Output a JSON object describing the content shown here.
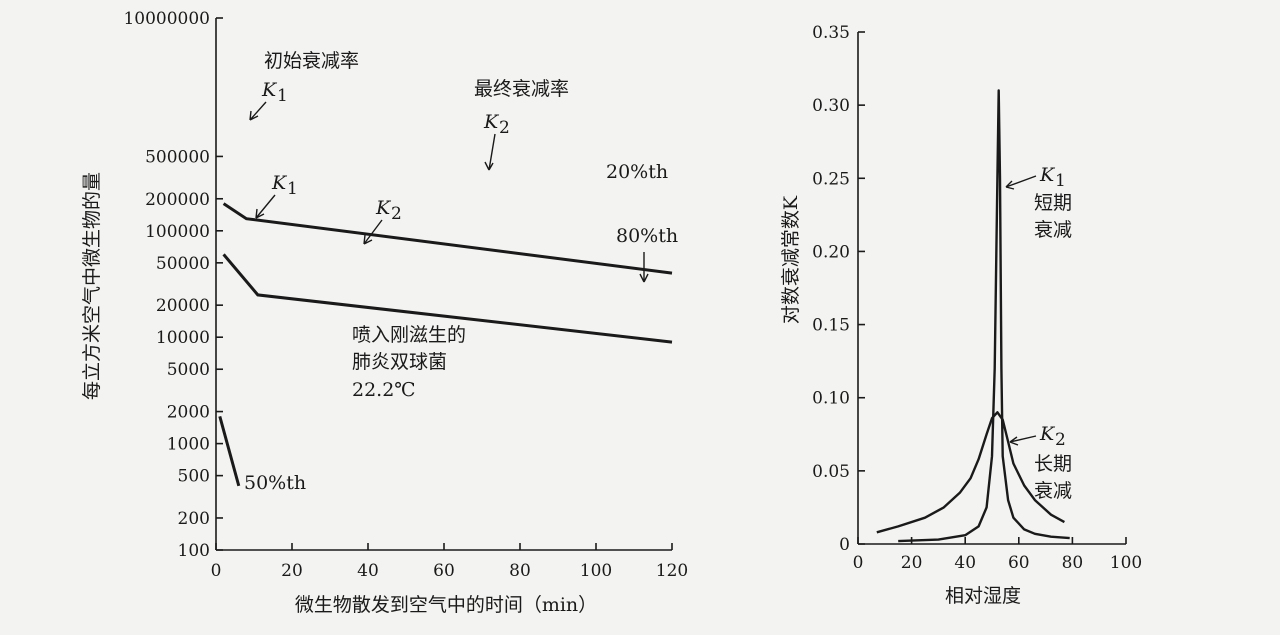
{
  "chart_data": [
    {
      "type": "line",
      "xlabel": "微生物散发到空气中的时间（min）",
      "ylabel": "每立方米空气中微生物的量",
      "yscale": "log",
      "xlim": [
        0,
        120
      ],
      "ylim": [
        100,
        10000000
      ],
      "x_ticks": [
        "0",
        "20",
        "40",
        "60",
        "80",
        "100",
        "120"
      ],
      "x_tick_values": [
        0,
        20,
        40,
        60,
        80,
        100,
        120
      ],
      "y_ticks": [
        "10000000",
        "500000",
        "200000",
        "100000",
        "50000",
        "20000",
        "10000",
        "5000",
        "2000",
        "1000",
        "500",
        "200",
        "100"
      ],
      "y_tick_values": [
        10000000,
        500000,
        200000,
        100000,
        50000,
        20000,
        10000,
        5000,
        2000,
        1000,
        500,
        200,
        100
      ],
      "series": [
        {
          "name": "20%th",
          "x": [
            2,
            8,
            120
          ],
          "y": [
            180000,
            130000,
            40000
          ]
        },
        {
          "name": "80%th",
          "x": [
            2,
            11,
            120
          ],
          "y": [
            60000,
            25000,
            9000
          ]
        },
        {
          "name": "50%th",
          "x": [
            1,
            6
          ],
          "y": [
            1800,
            400
          ]
        }
      ],
      "annotations": {
        "initial_rate": "初始衰减率",
        "final_rate": "最终衰减率",
        "k1": "K",
        "k1_sub": "1",
        "k2": "K",
        "k2_sub": "2",
        "condition_line1": "喷入刚滋生的",
        "condition_line2": "肺炎双球菌",
        "condition_line3": "22.2℃"
      }
    },
    {
      "type": "line",
      "xlabel": "相对湿度",
      "ylabel": "对数衰减常数K",
      "xlim": [
        0,
        100
      ],
      "ylim": [
        0,
        0.35
      ],
      "x_ticks": [
        "0",
        "20",
        "40",
        "60",
        "80",
        "100"
      ],
      "x_tick_values": [
        0,
        20,
        40,
        60,
        80,
        100
      ],
      "y_ticks": [
        "0",
        "0.05",
        "0.10",
        "0.15",
        "0.20",
        "0.25",
        "0.30",
        "0.35"
      ],
      "y_tick_values": [
        0,
        0.05,
        0.1,
        0.15,
        0.2,
        0.25,
        0.3,
        0.35
      ],
      "series": [
        {
          "name": "K1 短期衰减",
          "x": [
            15,
            30,
            40,
            45,
            48,
            50,
            51,
            52,
            52.5,
            53,
            53.5,
            54,
            56,
            58,
            62,
            66,
            72,
            79
          ],
          "y": [
            0.002,
            0.003,
            0.006,
            0.012,
            0.025,
            0.06,
            0.12,
            0.25,
            0.31,
            0.25,
            0.12,
            0.06,
            0.03,
            0.018,
            0.01,
            0.007,
            0.005,
            0.004
          ]
        },
        {
          "name": "K2 长期衰减",
          "x": [
            7,
            15,
            25,
            32,
            38,
            42,
            45,
            48,
            50,
            52,
            54,
            56,
            58,
            62,
            66,
            72,
            77
          ],
          "y": [
            0.008,
            0.012,
            0.018,
            0.025,
            0.035,
            0.045,
            0.058,
            0.075,
            0.086,
            0.09,
            0.085,
            0.07,
            0.055,
            0.04,
            0.03,
            0.02,
            0.015
          ]
        }
      ],
      "annotations": {
        "k1": "K",
        "k1_sub": "1",
        "k1_line1": "短期",
        "k1_line2": "衰减",
        "k2": "K",
        "k2_sub": "2",
        "k2_line1": "长期",
        "k2_line2": "衰减"
      }
    }
  ]
}
